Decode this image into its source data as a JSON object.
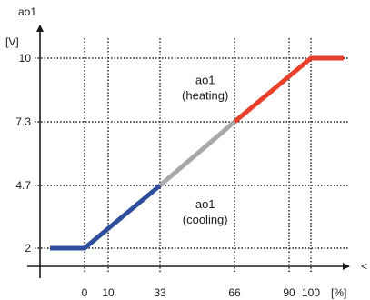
{
  "chart_data": {
    "type": "line",
    "ylabel": "ao1",
    "yunit": "[V]",
    "xunit": "[%]",
    "x_ticks": [
      "0",
      "10",
      "33",
      "66",
      "90",
      "100"
    ],
    "x_tick_values": [
      0,
      10,
      33,
      66,
      90,
      100
    ],
    "y_ticks": [
      "2",
      "4.7",
      "7.3",
      "10"
    ],
    "y_tick_values": [
      2,
      4.7,
      7.3,
      10
    ],
    "xlim": [
      -15,
      115
    ],
    "ylim": [
      2,
      10
    ],
    "grid": true,
    "segments": [
      {
        "color": "#2e4f9e",
        "points": [
          [
            -15,
            2
          ],
          [
            0,
            2
          ],
          [
            33,
            4.7
          ]
        ]
      },
      {
        "color": "#a8a8a8",
        "points": [
          [
            33,
            4.7
          ],
          [
            66,
            7.3
          ]
        ]
      },
      {
        "color": "#e8402a",
        "points": [
          [
            66,
            7.3
          ],
          [
            100,
            10
          ],
          [
            115,
            10
          ]
        ]
      }
    ],
    "annotations": [
      {
        "line1": "ao1",
        "line2": "(heating)",
        "x": 53,
        "y": 8.6
      },
      {
        "line1": "ao1",
        "line2": "(cooling)",
        "x": 53,
        "y": 3.4
      }
    ],
    "edge_mark": "<"
  }
}
